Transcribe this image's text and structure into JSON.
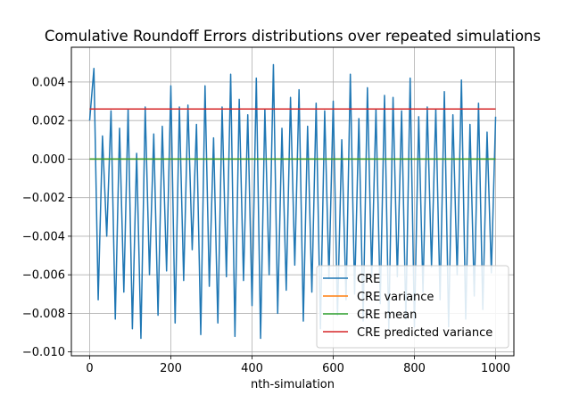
{
  "chart_data": {
    "type": "line",
    "title": "Comulative Roundoff Errors distributions over repeated simulations",
    "xlabel": "nth-simulation",
    "ylabel": "",
    "xlim": [
      -45,
      1045
    ],
    "ylim": [
      -0.0102,
      0.0058
    ],
    "x_ticks": [
      0,
      200,
      400,
      600,
      800,
      1000
    ],
    "x_tick_labels": [
      "0",
      "200",
      "400",
      "600",
      "800",
      "1000"
    ],
    "y_ticks": [
      -0.01,
      -0.008,
      -0.006,
      -0.004,
      -0.002,
      0.0,
      0.002,
      0.004
    ],
    "y_tick_labels": [
      "−0.010",
      "−0.008",
      "−0.006",
      "−0.004",
      "−0.002",
      "0.000",
      "0.002",
      "0.004"
    ],
    "grid": true,
    "legend_position": "lower-right",
    "series": [
      {
        "name": "CRE",
        "color": "#1f77b4",
        "description_n": 1000,
        "x_start": 0,
        "x_end": 1000,
        "y_mean": 0.0,
        "y_min": -0.0093,
        "y_max": 0.0049,
        "values": [
          0.002,
          0.0047,
          -0.0073,
          0.0012,
          -0.004,
          0.0025,
          -0.0083,
          0.0016,
          -0.0069,
          0.0026,
          -0.0088,
          0.0003,
          -0.0093,
          0.0027,
          -0.006,
          0.0013,
          -0.0081,
          0.0017,
          -0.0058,
          0.0038,
          -0.0085,
          0.0027,
          -0.0063,
          0.0028,
          -0.0047,
          0.0018,
          -0.0091,
          0.0038,
          -0.0066,
          0.0011,
          -0.0085,
          0.0027,
          -0.0061,
          0.0044,
          -0.0092,
          0.0031,
          -0.0063,
          0.0023,
          -0.0076,
          0.0042,
          -0.0093,
          0.0026,
          -0.006,
          0.0049,
          -0.008,
          0.0016,
          -0.0068,
          0.0032,
          -0.0055,
          0.0036,
          -0.0084,
          0.0017,
          -0.0069,
          0.0029,
          -0.0088,
          0.0025,
          -0.0062,
          0.003,
          -0.0081,
          0.001,
          -0.0073,
          0.0044,
          -0.007,
          0.0021,
          -0.0084,
          0.0037,
          -0.0061,
          0.0026,
          -0.0075,
          0.0033,
          -0.0088,
          0.0032,
          -0.0061,
          0.0025,
          -0.0083,
          0.0042,
          -0.0087,
          0.0022,
          -0.0069,
          0.0027,
          -0.0056,
          0.0026,
          -0.0073,
          0.0035,
          -0.0087,
          0.0023,
          -0.006,
          0.0041,
          -0.0083,
          0.0018,
          -0.0071,
          0.0029,
          -0.0078,
          0.0014,
          -0.0059,
          0.0022
        ]
      },
      {
        "name": "CRE variance",
        "color": "#ff7f0e",
        "constant_value": 0.0
      },
      {
        "name": "CRE mean",
        "color": "#2ca02c",
        "constant_value": 0.0
      },
      {
        "name": "CRE predicted variance",
        "color": "#d62728",
        "constant_value": 0.0026
      }
    ]
  }
}
